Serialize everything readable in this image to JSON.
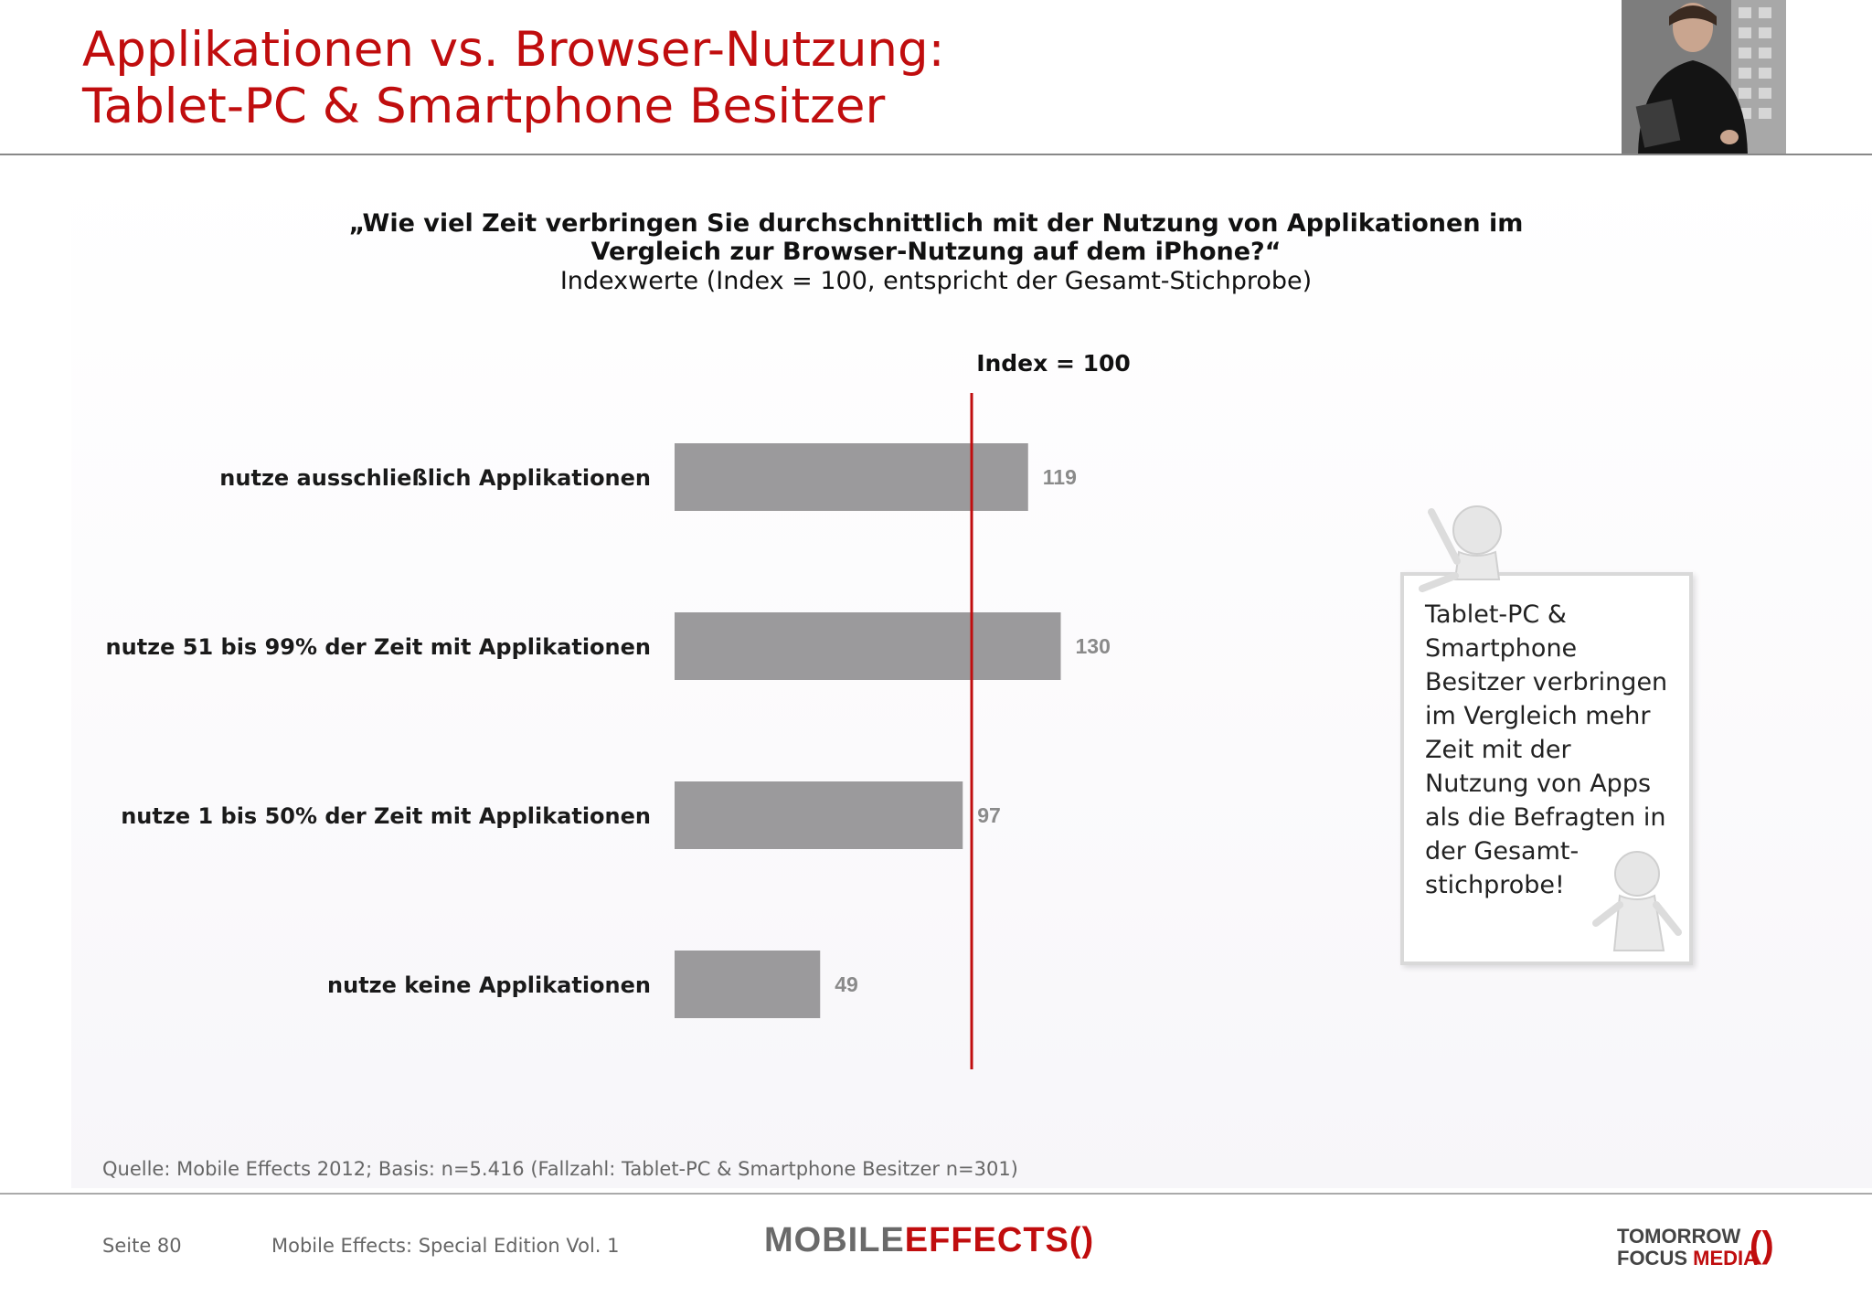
{
  "header": {
    "title_line1": "Applikationen vs. Browser-Nutzung:",
    "title_line2": "Tablet-PC & Smartphone Besitzer"
  },
  "question": {
    "line1": "„Wie viel Zeit verbringen Sie durchschnittlich mit der Nutzung von Applikationen im",
    "line2": "Vergleich zur Browser-Nutzung auf dem iPhone?“",
    "subtitle": "Indexwerte (Index = 100, entspricht der Gesamt-Stichprobe)"
  },
  "chart_data": {
    "type": "bar",
    "orientation": "horizontal",
    "categories": [
      "nutze ausschließlich Applikationen",
      "nutze 51 bis 99% der Zeit mit Applikationen",
      "nutze 1 bis 50% der Zeit mit Applikationen",
      "nutze keine Applikationen"
    ],
    "values": [
      119,
      130,
      97,
      49
    ],
    "value_labels": [
      "119",
      "130",
      "97",
      "49"
    ],
    "reference_line": {
      "value": 100,
      "label": "Index = 100",
      "color": "#c00d0e"
    },
    "xlim": [
      0,
      150
    ],
    "bar_color": "#9b9a9c",
    "value_label_color": "#8a8a8a",
    "grid": false,
    "legend": false
  },
  "callout": {
    "lines": [
      "Tablet-PC &",
      "Smartphone",
      "Besitzer verbringen",
      "im Vergleich mehr",
      "Zeit mit der",
      "Nutzung von Apps",
      "als die Befragten in",
      "der Gesamt-",
      "stichprobe!"
    ]
  },
  "source": "Quelle: Mobile Effects 2012; Basis: n=5.416 (Fallzahl: Tablet-PC & Smartphone Besitzer n=301)",
  "footer": {
    "page": "Seite 80",
    "title": "Mobile Effects: Special Edition Vol. 1",
    "logo_mobile": "MOBILE",
    "logo_effects": "EFFECTS",
    "logo_paren": "()",
    "logo2_line1": "TOMORROW",
    "logo2_focus": "FOCUS",
    "logo2_media": "MEDIA"
  },
  "colors": {
    "brand_red": "#c00d0e",
    "bar_gray": "#9b9a9c"
  }
}
